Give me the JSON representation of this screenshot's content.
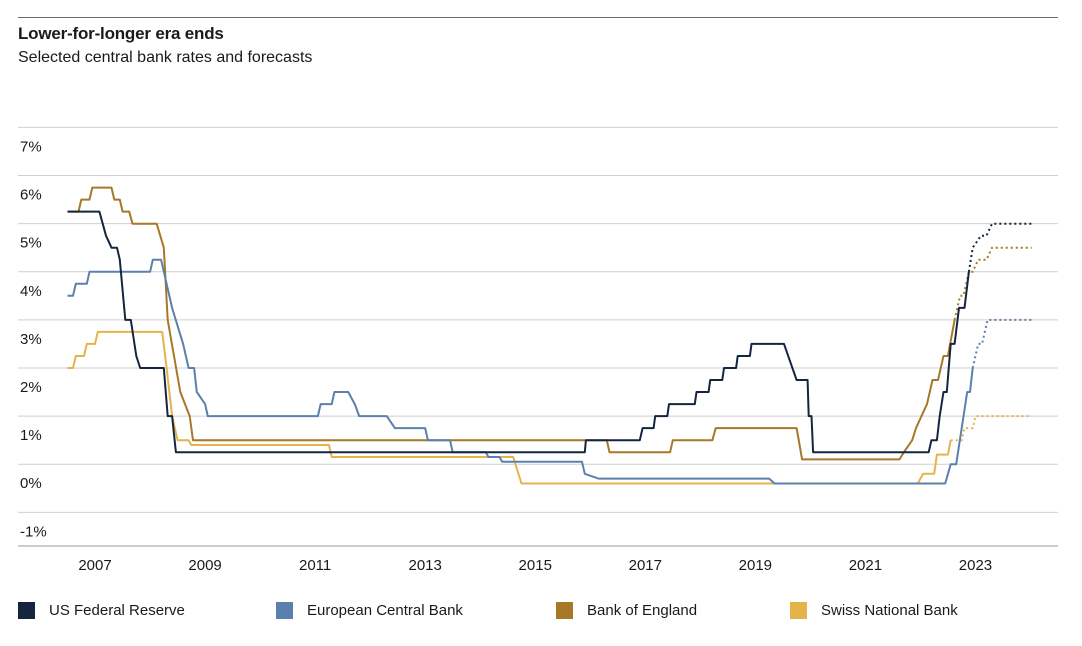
{
  "header": {
    "title": "Lower-for-longer era ends",
    "subtitle": "Selected central bank rates and forecasts"
  },
  "chart_data": {
    "type": "line",
    "title": "Lower-for-longer era ends",
    "subtitle": "Selected central bank rates and forecasts",
    "xlabel": "",
    "ylabel": "",
    "xlim": [
      2005.6,
      2024.5
    ],
    "ylim": [
      -1.7,
      7.3
    ],
    "y_ticks": [
      -1,
      0,
      1,
      2,
      3,
      4,
      5,
      6,
      7
    ],
    "y_tick_labels": [
      "-1%",
      "0%",
      "1%",
      "2%",
      "3%",
      "4%",
      "5%",
      "6%",
      "7%"
    ],
    "x_ticks": [
      2007,
      2009,
      2011,
      2013,
      2015,
      2017,
      2019,
      2021,
      2023
    ],
    "x_tick_labels": [
      "2007",
      "2009",
      "2011",
      "2013",
      "2015",
      "2017",
      "2019",
      "2021",
      "2023"
    ],
    "grid": true,
    "legend_position": "bottom",
    "series": [
      {
        "name": "US Federal Reserve",
        "color": "#14263f",
        "actual": [
          [
            2006.5,
            5.25
          ],
          [
            2007.08,
            5.25
          ],
          [
            2007.2,
            4.75
          ],
          [
            2007.3,
            4.5
          ],
          [
            2007.4,
            4.5
          ],
          [
            2007.45,
            4.25
          ],
          [
            2007.55,
            3.0
          ],
          [
            2007.65,
            3.0
          ],
          [
            2007.75,
            2.25
          ],
          [
            2007.82,
            2.0
          ],
          [
            2008.25,
            2.0
          ],
          [
            2008.32,
            1.0
          ],
          [
            2008.4,
            1.0
          ],
          [
            2008.47,
            0.25
          ],
          [
            2015.9,
            0.25
          ],
          [
            2015.92,
            0.5
          ],
          [
            2016.9,
            0.5
          ],
          [
            2016.95,
            0.75
          ],
          [
            2017.15,
            0.75
          ],
          [
            2017.18,
            1.0
          ],
          [
            2017.4,
            1.0
          ],
          [
            2017.43,
            1.25
          ],
          [
            2017.9,
            1.25
          ],
          [
            2017.93,
            1.5
          ],
          [
            2018.15,
            1.5
          ],
          [
            2018.18,
            1.75
          ],
          [
            2018.4,
            1.75
          ],
          [
            2018.43,
            2.0
          ],
          [
            2018.65,
            2.0
          ],
          [
            2018.68,
            2.25
          ],
          [
            2018.9,
            2.25
          ],
          [
            2018.93,
            2.5
          ],
          [
            2019.52,
            2.5
          ],
          [
            2019.75,
            1.75
          ],
          [
            2019.95,
            1.75
          ],
          [
            2019.97,
            1.0
          ],
          [
            2020.02,
            1.0
          ],
          [
            2020.05,
            0.25
          ],
          [
            2022.15,
            0.25
          ],
          [
            2022.2,
            0.5
          ],
          [
            2022.3,
            0.5
          ],
          [
            2022.35,
            1.0
          ],
          [
            2022.42,
            1.5
          ],
          [
            2022.48,
            1.5
          ],
          [
            2022.55,
            2.5
          ],
          [
            2022.62,
            2.5
          ],
          [
            2022.7,
            3.25
          ],
          [
            2022.8,
            3.25
          ],
          [
            2022.88,
            4.0
          ]
        ],
        "forecast": [
          [
            2022.88,
            4.0
          ],
          [
            2022.95,
            4.5
          ],
          [
            2023.1,
            4.75
          ],
          [
            2023.2,
            4.75
          ],
          [
            2023.3,
            5.0
          ],
          [
            2024.02,
            5.0
          ]
        ]
      },
      {
        "name": "European Central Bank",
        "color": "#5b80ad",
        "actual": [
          [
            2006.5,
            3.5
          ],
          [
            2006.6,
            3.5
          ],
          [
            2006.65,
            3.75
          ],
          [
            2006.85,
            3.75
          ],
          [
            2006.9,
            4.0
          ],
          [
            2008.0,
            4.0
          ],
          [
            2008.05,
            4.25
          ],
          [
            2008.2,
            4.25
          ],
          [
            2008.4,
            3.25
          ],
          [
            2008.6,
            2.5
          ],
          [
            2008.7,
            2.0
          ],
          [
            2008.8,
            2.0
          ],
          [
            2008.85,
            1.5
          ],
          [
            2009.0,
            1.25
          ],
          [
            2009.05,
            1.0
          ],
          [
            2010.8,
            1.0
          ],
          [
            2011.05,
            1.0
          ],
          [
            2011.1,
            1.25
          ],
          [
            2011.3,
            1.25
          ],
          [
            2011.35,
            1.5
          ],
          [
            2011.6,
            1.5
          ],
          [
            2011.72,
            1.25
          ],
          [
            2011.8,
            1.0
          ],
          [
            2012.3,
            1.0
          ],
          [
            2012.45,
            0.75
          ],
          [
            2013.0,
            0.75
          ],
          [
            2013.05,
            0.5
          ],
          [
            2013.45,
            0.5
          ],
          [
            2013.5,
            0.25
          ],
          [
            2014.1,
            0.25
          ],
          [
            2014.15,
            0.15
          ],
          [
            2014.35,
            0.15
          ],
          [
            2014.4,
            0.05
          ],
          [
            2015.85,
            0.05
          ],
          [
            2015.9,
            -0.2
          ],
          [
            2016.15,
            -0.3
          ],
          [
            2019.25,
            -0.3
          ],
          [
            2019.35,
            -0.4
          ],
          [
            2022.45,
            -0.4
          ],
          [
            2022.55,
            0.0
          ],
          [
            2022.65,
            0.0
          ],
          [
            2022.75,
            0.75
          ],
          [
            2022.85,
            1.5
          ],
          [
            2022.9,
            1.5
          ],
          [
            2022.95,
            2.0
          ]
        ],
        "forecast": [
          [
            2022.95,
            2.0
          ],
          [
            2023.05,
            2.5
          ],
          [
            2023.12,
            2.5
          ],
          [
            2023.22,
            3.0
          ],
          [
            2024.02,
            3.0
          ]
        ]
      },
      {
        "name": "Bank of England",
        "color": "#a67828",
        "actual": [
          [
            2006.5,
            5.25
          ],
          [
            2006.7,
            5.25
          ],
          [
            2006.75,
            5.5
          ],
          [
            2006.9,
            5.5
          ],
          [
            2006.95,
            5.75
          ],
          [
            2007.3,
            5.75
          ],
          [
            2007.35,
            5.5
          ],
          [
            2007.45,
            5.5
          ],
          [
            2007.5,
            5.25
          ],
          [
            2007.62,
            5.25
          ],
          [
            2007.68,
            5.0
          ],
          [
            2008.12,
            5.0
          ],
          [
            2008.25,
            4.5
          ],
          [
            2008.32,
            3.0
          ],
          [
            2008.55,
            1.5
          ],
          [
            2008.72,
            1.0
          ],
          [
            2008.78,
            0.5
          ],
          [
            2016.3,
            0.5
          ],
          [
            2016.35,
            0.25
          ],
          [
            2017.45,
            0.25
          ],
          [
            2017.5,
            0.5
          ],
          [
            2018.22,
            0.5
          ],
          [
            2018.28,
            0.75
          ],
          [
            2019.75,
            0.75
          ],
          [
            2019.85,
            0.1
          ],
          [
            2021.62,
            0.1
          ],
          [
            2021.7,
            0.25
          ],
          [
            2021.85,
            0.5
          ],
          [
            2021.92,
            0.75
          ],
          [
            2022.02,
            1.0
          ],
          [
            2022.12,
            1.25
          ],
          [
            2022.22,
            1.75
          ],
          [
            2022.32,
            1.75
          ],
          [
            2022.42,
            2.25
          ],
          [
            2022.5,
            2.25
          ],
          [
            2022.62,
            3.0
          ]
        ],
        "forecast": [
          [
            2022.62,
            3.0
          ],
          [
            2022.72,
            3.5
          ],
          [
            2022.78,
            3.5
          ],
          [
            2022.88,
            4.0
          ],
          [
            2022.95,
            4.0
          ],
          [
            2023.05,
            4.25
          ],
          [
            2023.2,
            4.25
          ],
          [
            2023.3,
            4.5
          ],
          [
            2024.02,
            4.5
          ]
        ]
      },
      {
        "name": "Swiss National Bank",
        "color": "#e4b44a",
        "actual": [
          [
            2006.5,
            2.0
          ],
          [
            2006.6,
            2.0
          ],
          [
            2006.65,
            2.25
          ],
          [
            2006.8,
            2.25
          ],
          [
            2006.85,
            2.5
          ],
          [
            2007.0,
            2.5
          ],
          [
            2007.05,
            2.75
          ],
          [
            2008.22,
            2.75
          ],
          [
            2008.3,
            2.0
          ],
          [
            2008.4,
            1.0
          ],
          [
            2008.5,
            0.5
          ],
          [
            2008.6,
            0.5
          ],
          [
            2008.65,
            0.5
          ],
          [
            2008.7,
            0.5
          ],
          [
            2008.75,
            0.4
          ],
          [
            2010.85,
            0.4
          ],
          [
            2010.9,
            0.4
          ],
          [
            2011.25,
            0.4
          ],
          [
            2011.3,
            0.15
          ],
          [
            2014.6,
            0.15
          ],
          [
            2014.75,
            -0.4
          ],
          [
            2021.8,
            -0.4
          ],
          [
            2021.95,
            -0.4
          ],
          [
            2022.05,
            -0.2
          ],
          [
            2022.25,
            -0.2
          ],
          [
            2022.3,
            0.2
          ],
          [
            2022.5,
            0.2
          ],
          [
            2022.55,
            0.5
          ]
        ],
        "forecast": [
          [
            2022.55,
            0.5
          ],
          [
            2022.75,
            0.5
          ],
          [
            2022.8,
            0.75
          ],
          [
            2022.95,
            0.75
          ],
          [
            2023.0,
            1.0
          ],
          [
            2024.02,
            1.0
          ]
        ]
      }
    ]
  }
}
